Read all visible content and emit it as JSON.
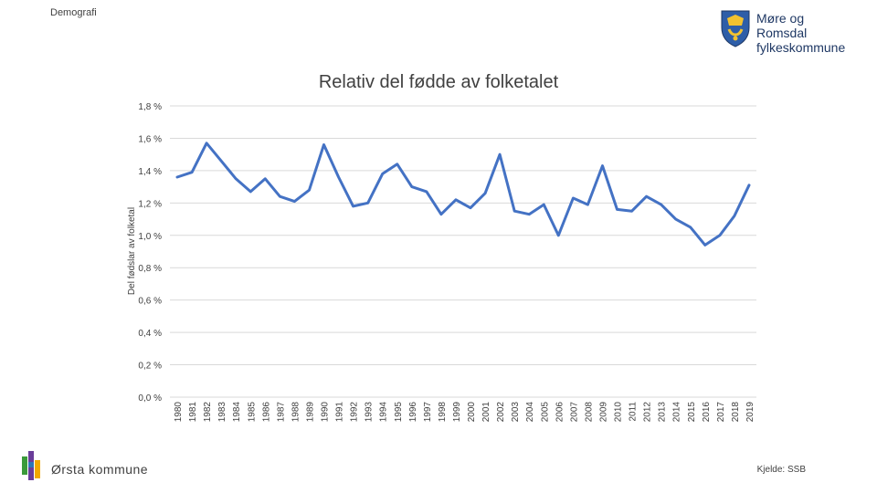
{
  "header": {
    "section": "Demografi"
  },
  "logo": {
    "line1": "Møre og Romsdal",
    "line2": "fylkeskommune"
  },
  "footer": {
    "municipality": "Ørsta kommune",
    "source": "Kjelde: SSB"
  },
  "colors": {
    "line": "#4472c4",
    "grid": "#d9d9d9",
    "text": "#404040"
  },
  "chart_data": {
    "type": "line",
    "title": "Relativ del fødde av folketalet",
    "ylabel": "Del fødslar av folketal",
    "xlabel": "",
    "ylim": [
      0,
      1.8
    ],
    "yticks": [
      "0,0 %",
      "0,2 %",
      "0,4 %",
      "0,6 %",
      "0,8 %",
      "1,0 %",
      "1,2 %",
      "1,4 %",
      "1,6 %",
      "1,8 %"
    ],
    "grid": true,
    "categories": [
      "1980",
      "1981",
      "1982",
      "1983",
      "1984",
      "1985",
      "1986",
      "1987",
      "1988",
      "1989",
      "1990",
      "1991",
      "1992",
      "1993",
      "1994",
      "1995",
      "1996",
      "1997",
      "1998",
      "1999",
      "2000",
      "2001",
      "2002",
      "2003",
      "2004",
      "2005",
      "2006",
      "2007",
      "2008",
      "2009",
      "2010",
      "2011",
      "2012",
      "2013",
      "2014",
      "2015",
      "2016",
      "2017",
      "2018",
      "2019"
    ],
    "series": [
      {
        "values": [
          1.36,
          1.39,
          1.57,
          1.46,
          1.35,
          1.27,
          1.35,
          1.24,
          1.21,
          1.28,
          1.56,
          1.36,
          1.18,
          1.2,
          1.38,
          1.44,
          1.3,
          1.27,
          1.13,
          1.22,
          1.17,
          1.26,
          1.5,
          1.15,
          1.13,
          1.19,
          1.0,
          1.23,
          1.19,
          1.43,
          1.16,
          1.15,
          1.24,
          1.19,
          1.1,
          1.05,
          0.94,
          1.0,
          1.12,
          1.31
        ]
      }
    ]
  }
}
